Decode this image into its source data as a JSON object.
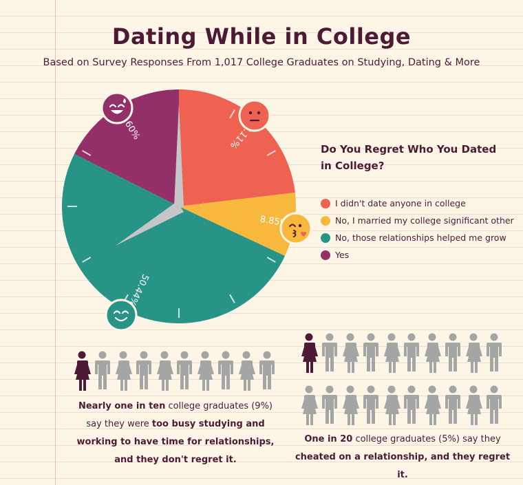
{
  "header": {
    "title": "Dating While in College",
    "subtitle": "Based on Survey Responses From 1,017 College Graduates on Studying, Dating & More"
  },
  "chart_data": {
    "type": "pie",
    "title": "Do You Regret Who You Dated in College?",
    "slices": [
      {
        "label": "I didn't date anyone in college",
        "value": 23.11,
        "value_label": "23.11%",
        "color": "#ef6150",
        "icon": "neutral-face-icon"
      },
      {
        "label": "No, I married my college significant other",
        "value": 8.85,
        "value_label": "8.85%",
        "color": "#f8b73d",
        "icon": "kissing-face-icon"
      },
      {
        "label": "No, those relationships helped me grow",
        "value": 50.44,
        "value_label": "50.44%",
        "color": "#289387",
        "icon": "smiling-face-icon"
      },
      {
        "label": "Yes",
        "value": 17.6,
        "value_label": "17.60%",
        "color": "#93306a",
        "icon": "sweat-smile-face-icon"
      }
    ]
  },
  "legend": {
    "title_line1": "Do You Regret Who You Dated",
    "title_line2": "in College?"
  },
  "stats": {
    "left": {
      "highlighted": 1,
      "total": 10,
      "caption_bold_1": "Nearly one in ten",
      "caption_text_1": " college graduates (9%)",
      "caption_text_2": "say they were ",
      "caption_bold_2": "too busy studying and",
      "caption_bold_3": "working to have time for relationships,",
      "caption_bold_4": "and they don't regret it."
    },
    "right": {
      "highlighted": 1,
      "total": 20,
      "caption_bold_1": "One in 20",
      "caption_text_1": " college graduates (5%) say they",
      "caption_bold_2": "cheated on a relationship, and they regret it."
    }
  },
  "colors": {
    "highlight_person": "#4d1a35",
    "grey_person": "#a3a6a5",
    "clock_hand": "#c6c6c8"
  }
}
